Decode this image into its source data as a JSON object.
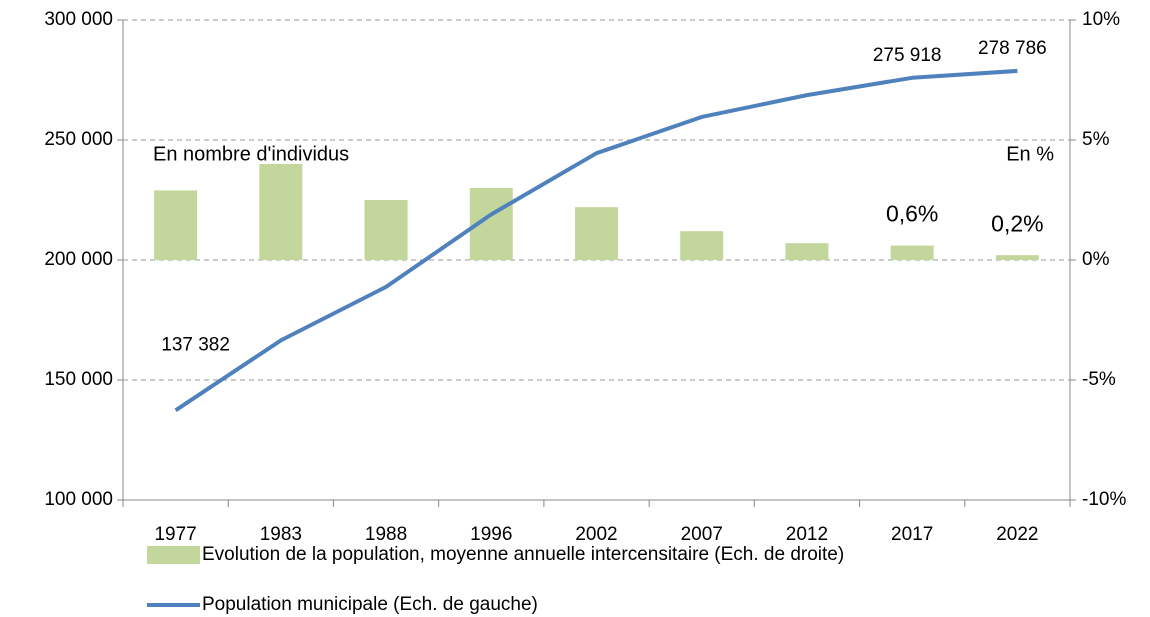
{
  "chart_data": {
    "type": "bar_line",
    "categories": [
      "1977",
      "1983",
      "1988",
      "1996",
      "2002",
      "2007",
      "2012",
      "2017",
      "2022"
    ],
    "series": [
      {
        "name": "Evolution de la population, moyenne annuelle intercensitaire (Ech. de droite)",
        "type": "bar",
        "axis": "y2",
        "color": "#c3d69b",
        "values": [
          2.9,
          4.0,
          2.5,
          3.0,
          2.2,
          1.2,
          0.7,
          0.6,
          0.2
        ],
        "value_labels": [
          null,
          null,
          null,
          null,
          null,
          null,
          null,
          "0,6%",
          "0,2%"
        ]
      },
      {
        "name": "Population municipale  (Ech. de gauche)",
        "type": "line",
        "color": "#4f81bd",
        "values": [
          137382,
          166500,
          188800,
          219000,
          244500,
          259600,
          268700,
          275918,
          278786
        ],
        "value_labels": [
          "137 382",
          null,
          null,
          null,
          null,
          null,
          null,
          "275 918",
          "278 786"
        ]
      }
    ],
    "ylim": [
      100000,
      300000
    ],
    "yticks": [
      {
        "value": 100000,
        "label": "100 000"
      },
      {
        "value": 150000,
        "label": "150 000"
      },
      {
        "value": 200000,
        "label": "200 000"
      },
      {
        "value": 250000,
        "label": "250 000"
      },
      {
        "value": 300000,
        "label": "300 000"
      }
    ],
    "y2lim": [
      -10,
      10
    ],
    "y2ticks": [
      {
        "value": -10,
        "label": "-10%"
      },
      {
        "value": -5,
        "label": "-5%"
      },
      {
        "value": 0,
        "label": "0%"
      },
      {
        "value": 5,
        "label": "5%"
      },
      {
        "value": 10,
        "label": "10%"
      }
    ],
    "annotations": [
      "En nombre d'individus",
      "En %"
    ],
    "grid": true,
    "legend": "bottom"
  }
}
